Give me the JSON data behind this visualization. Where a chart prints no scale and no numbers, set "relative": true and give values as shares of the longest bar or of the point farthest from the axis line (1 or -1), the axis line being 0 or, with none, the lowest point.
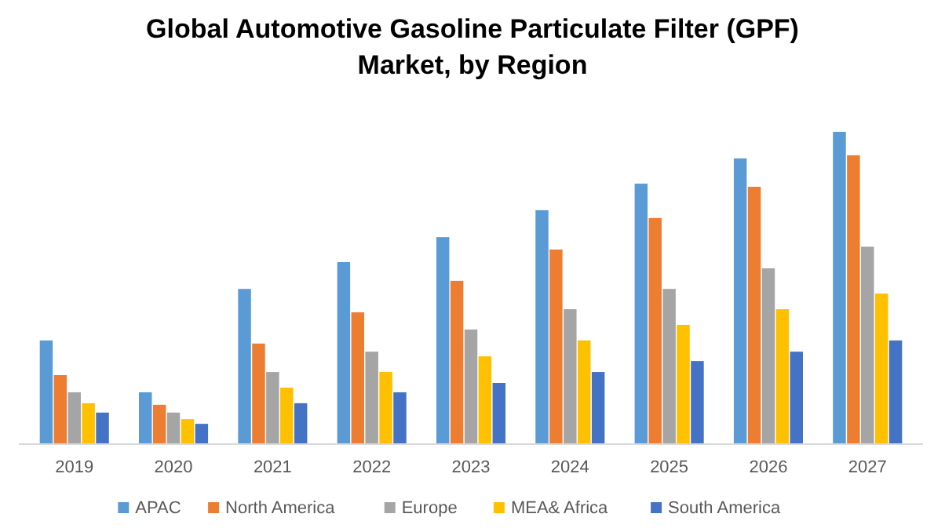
{
  "chart_data": {
    "type": "bar",
    "title": "Global Automotive Gasoline Particulate Filter (GPF) Market, by Region",
    "relative": true,
    "categories": [
      "2019",
      "2020",
      "2021",
      "2022",
      "2023",
      "2024",
      "2025",
      "2026",
      "2027"
    ],
    "legend": "bottom",
    "series": [
      {
        "name": "APAC",
        "color": "#5b9bd5",
        "values": [
          0.332,
          0.166,
          0.497,
          0.583,
          0.663,
          0.749,
          0.834,
          0.915,
          1
        ]
      },
      {
        "name": "North America",
        "color": "#ed7d31",
        "values": [
          0.221,
          0.126,
          0.322,
          0.422,
          0.523,
          0.623,
          0.724,
          0.824,
          0.925
        ]
      },
      {
        "name": "Europe",
        "color": "#a5a5a5",
        "values": [
          0.166,
          0.101,
          0.231,
          0.296,
          0.367,
          0.432,
          0.497,
          0.563,
          0.632
        ]
      },
      {
        "name": "MEA& Africa",
        "color": "#ffc000",
        "values": [
          0.131,
          0.08,
          0.181,
          0.231,
          0.281,
          0.332,
          0.382,
          0.432,
          0.482
        ]
      },
      {
        "name": "South America",
        "color": "#4472c4",
        "values": [
          0.101,
          0.065,
          0.131,
          0.166,
          0.196,
          0.231,
          0.266,
          0.296,
          0.332
        ]
      }
    ]
  }
}
